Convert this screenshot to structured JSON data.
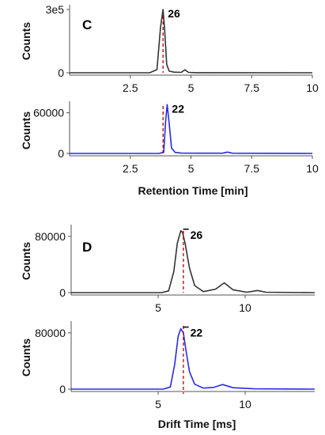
{
  "figure": {
    "panel_c_letter": "C",
    "panel_d_letter": "D",
    "xlabel_c": "Retention Time [min]",
    "xlabel_d": "Drift Time [ms]"
  },
  "chart_data": [
    {
      "type": "line",
      "panel": "C-top",
      "ylabel": "Counts",
      "xlim": [
        0,
        10
      ],
      "ylim": [
        0,
        300000
      ],
      "xticks": [
        2.5,
        5,
        7.5,
        10
      ],
      "xtick_labels": [
        "2.5",
        "5",
        "7.5",
        "10"
      ],
      "yticks": [
        0,
        300000
      ],
      "ytick_labels": [
        "0",
        "3e5"
      ],
      "color": "#333333",
      "x": [
        0,
        3.3,
        3.6,
        3.75,
        3.85,
        3.92,
        4.0,
        4.1,
        4.3,
        4.6,
        4.75,
        4.9,
        5.2,
        10
      ],
      "y": [
        0,
        0,
        15000,
        220000,
        300000,
        200000,
        40000,
        8000,
        3000,
        2000,
        14000,
        2000,
        500,
        0
      ],
      "peak_label": "26",
      "marker_x": 3.85
    },
    {
      "type": "line",
      "panel": "C-bottom",
      "ylabel": "Counts",
      "xlim": [
        0,
        10
      ],
      "ylim": [
        0,
        70000
      ],
      "xticks": [
        2.5,
        5,
        7.5,
        10
      ],
      "xtick_labels": [
        "2.5",
        "5",
        "7.5",
        "10"
      ],
      "yticks": [
        0,
        60000
      ],
      "ytick_labels": [
        "0",
        "60000"
      ],
      "color": "#2a2ae0",
      "x": [
        0,
        3.7,
        3.88,
        3.95,
        4.02,
        4.1,
        4.2,
        4.35,
        4.6,
        6.3,
        6.5,
        6.7,
        10
      ],
      "y": [
        0,
        0,
        2000,
        45000,
        72000,
        45000,
        8000,
        1500,
        500,
        400,
        2000,
        400,
        0
      ],
      "peak_label": "22",
      "marker_x": 3.85
    },
    {
      "type": "line",
      "panel": "D-top",
      "ylabel": "Counts",
      "xlim": [
        0,
        14
      ],
      "ylim": [
        0,
        90000
      ],
      "xticks": [
        5,
        10
      ],
      "xtick_labels": [
        "5",
        "10"
      ],
      "yticks": [
        0,
        80000
      ],
      "ytick_labels": [
        "0",
        "80000"
      ],
      "color": "#333333",
      "x": [
        0,
        5.2,
        5.6,
        5.9,
        6.1,
        6.3,
        6.4,
        6.55,
        6.8,
        7.1,
        7.6,
        8.3,
        8.8,
        9.3,
        10.1,
        10.7,
        11.2,
        14
      ],
      "y": [
        0,
        0,
        2500,
        30000,
        70000,
        88000,
        86000,
        70000,
        35000,
        10000,
        1500,
        5000,
        14000,
        4000,
        600,
        3000,
        600,
        0
      ],
      "peak_label": "26",
      "marker_x": 6.45
    },
    {
      "type": "line",
      "panel": "D-bottom",
      "ylabel": "Counts",
      "xlim": [
        0,
        14
      ],
      "ylim": [
        0,
        90000
      ],
      "xticks": [
        5,
        10
      ],
      "xtick_labels": [
        "5",
        "10"
      ],
      "yticks": [
        0,
        80000
      ],
      "ytick_labels": [
        "0",
        "80000"
      ],
      "color": "#2a2ae0",
      "x": [
        0,
        5.3,
        5.7,
        5.95,
        6.15,
        6.3,
        6.45,
        6.6,
        6.8,
        7.1,
        7.6,
        8.2,
        8.7,
        9.3,
        10.5,
        14
      ],
      "y": [
        0,
        0,
        3000,
        35000,
        75000,
        86000,
        80000,
        55000,
        25000,
        7000,
        1500,
        2500,
        6500,
        2000,
        500,
        0
      ],
      "peak_label": "22",
      "marker_x": 6.45
    }
  ]
}
